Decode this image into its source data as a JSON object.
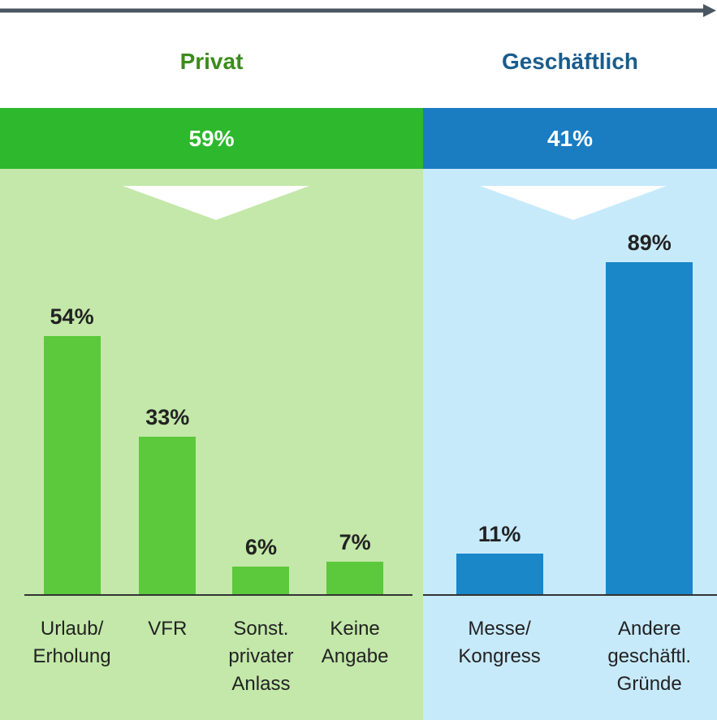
{
  "chart_data": [
    {
      "type": "bar",
      "title": "Privat",
      "total_value": 59,
      "total_label": "59%",
      "categories": [
        "Urlaub/\nErholung",
        "VFR",
        "Sonst.\nprivater\nAnlass",
        "Keine\nAngabe"
      ],
      "values": [
        54,
        33,
        6,
        7
      ],
      "value_labels": [
        "54%",
        "33%",
        "6%",
        "7%"
      ],
      "color": "#5cc83c",
      "band_color": "#2db82d",
      "background": "#c3e8a9",
      "title_color": "#3b8c1c",
      "ylim": [
        0,
        78
      ]
    },
    {
      "type": "bar",
      "title": "Geschäftlich",
      "total_value": 41,
      "total_label": "41%",
      "categories": [
        "Messe/\nKongress",
        "Andere\ngeschäftl.\nGründe"
      ],
      "values": [
        11,
        89
      ],
      "value_labels": [
        "11%",
        "89%"
      ],
      "color": "#1a87c9",
      "band_color": "#1a7dc2",
      "background": "#c7eafb",
      "title_color": "#1b5c8c",
      "ylim": [
        0,
        100
      ]
    }
  ]
}
